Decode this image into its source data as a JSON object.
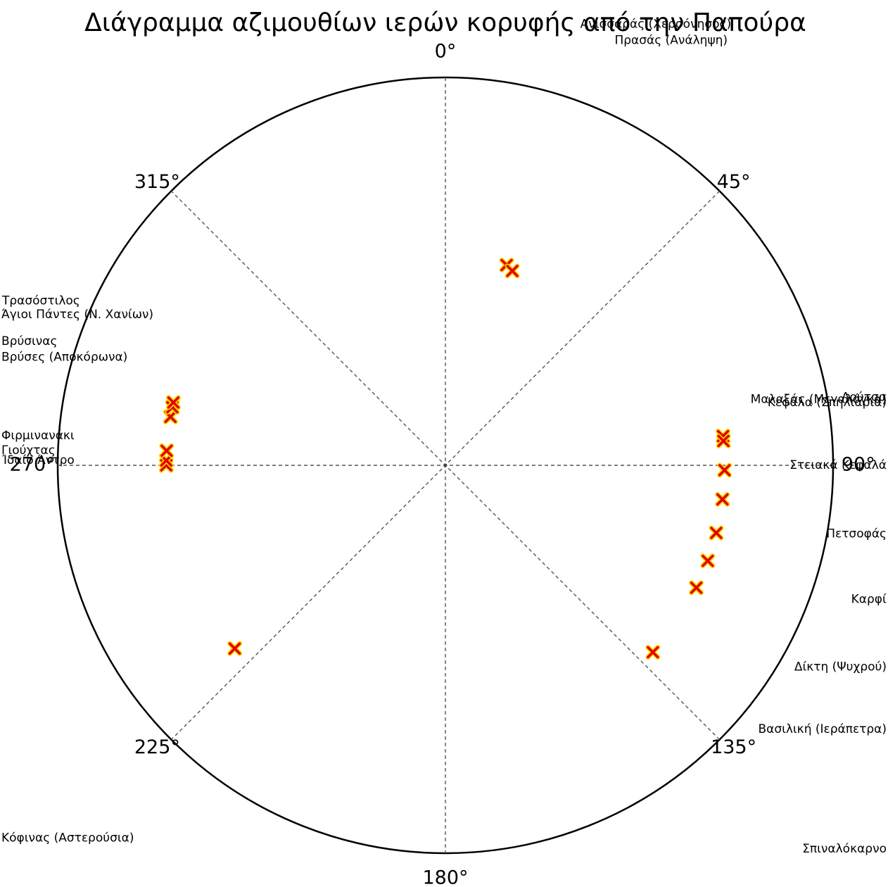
{
  "chart_data": {
    "type": "scatter",
    "projection": "polar",
    "title": "Διάγραμμα αζιμουθίων ιερών κορυφής από την Παπούρα",
    "angular_ticks": [
      {
        "deg": 0,
        "label": "0°"
      },
      {
        "deg": 45,
        "label": "45°"
      },
      {
        "deg": 135,
        "label": "135°"
      },
      {
        "deg": 180,
        "label": "180°"
      },
      {
        "deg": 225,
        "label": "225°"
      },
      {
        "deg": 270,
        "label": "270°"
      },
      {
        "deg": 315,
        "label": "315°"
      },
      {
        "deg": 90,
        "label": "90°"
      }
    ],
    "grid": true,
    "marker": {
      "symbol": "x",
      "color": "#e00000",
      "edge_color": "#ffd400"
    },
    "points": [
      {
        "azimuth": 17,
        "r": 0.54
      },
      {
        "azimuth": 19,
        "r": 0.53
      },
      {
        "azimuth": 84,
        "r": 0.72
      },
      {
        "azimuth": 85,
        "r": 0.72
      },
      {
        "azimuth": 91,
        "r": 0.72
      },
      {
        "azimuth": 97,
        "r": 0.72
      },
      {
        "azimuth": 104,
        "r": 0.72
      },
      {
        "azimuth": 110,
        "r": 0.72
      },
      {
        "azimuth": 116,
        "r": 0.72
      },
      {
        "azimuth": 132,
        "r": 0.72
      },
      {
        "azimuth": 229,
        "r": 0.72
      },
      {
        "azimuth": 270,
        "r": 0.72
      },
      {
        "azimuth": 271,
        "r": 0.72
      },
      {
        "azimuth": 273,
        "r": 0.72
      },
      {
        "azimuth": 280,
        "r": 0.72
      },
      {
        "azimuth": 282,
        "r": 0.72
      },
      {
        "azimuth": 283,
        "r": 0.72
      }
    ],
    "labels": [
      {
        "text": "Ανισσαράς (Χερσόνησος)",
        "azimuth": 25.5,
        "r": 1.26
      },
      {
        "text": "Πρασάς (Ανάληψη)",
        "azimuth": 28,
        "r": 1.24
      },
      {
        "text": "Κεφάλα (Σπηλιάρια)",
        "azimuth": 83.5,
        "r": 1.43
      },
      {
        "text": "Μαλαξάς (Μεγαλόγκα)",
        "azimuth": 83.5,
        "r": 1.5
      },
      {
        "text": "Λούτσα",
        "azimuth": 83,
        "r": 1.44
      },
      {
        "text": "Στειακά Κεφαλά",
        "azimuth": 90,
        "r": 1.45
      },
      {
        "text": "Πετσοφάς",
        "azimuth": 97,
        "r": 1.45
      },
      {
        "text": "Καρφί",
        "azimuth": 104,
        "r": 1.43
      },
      {
        "text": "Δίκτη (Ψυχρού)",
        "azimuth": 111,
        "r": 1.45
      },
      {
        "text": "Βασιλική (Ιεράπετρα)",
        "azimuth": 118,
        "r": 1.45
      },
      {
        "text": "Σπιναλόκαρνο",
        "azimuth": 133,
        "r": 1.45
      },
      {
        "text": "Κόφινας (Αστερούσια)",
        "azimuth": 228.5,
        "r": 1.45
      },
      {
        "text": "Ίδαίο Άντρο",
        "azimuth": 270.5,
        "r": 1.43
      },
      {
        "text": "Γιούχτας",
        "azimuth": 271.5,
        "r": 1.45
      },
      {
        "text": "Φιρμινανάκι",
        "azimuth": 273,
        "r": 1.45
      },
      {
        "text": "Βρύσες (Αποκόρωνα)",
        "azimuth": 281,
        "r": 1.46
      },
      {
        "text": "Βρύσινας",
        "azimuth": 283,
        "r": 1.42
      },
      {
        "text": "Άγιοι Πάντες (Ν. Χανίων)",
        "azimuth": 285,
        "r": 1.5
      },
      {
        "text": "Τρασόστιλος",
        "azimuth": 287,
        "r": 1.45
      }
    ]
  }
}
